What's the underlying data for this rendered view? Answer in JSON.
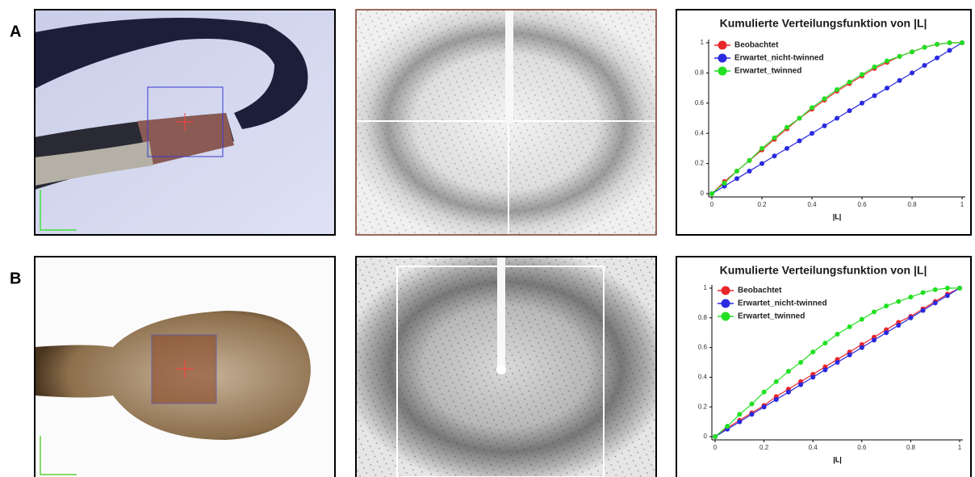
{
  "panels": [
    {
      "label": "A"
    },
    {
      "label": "B"
    }
  ],
  "chart_data": [
    {
      "type": "line",
      "title": "Kumulierte Verteilungsfunktion von |L|",
      "x_label": "|L|",
      "x": [
        0,
        0.05,
        0.1,
        0.15,
        0.2,
        0.25,
        0.3,
        0.35,
        0.4,
        0.45,
        0.5,
        0.55,
        0.6,
        0.65,
        0.7,
        0.75,
        0.8,
        0.85,
        0.9,
        0.95,
        1
      ],
      "xlim": [
        0,
        1
      ],
      "xticks": [
        0,
        0.2,
        0.4,
        0.6,
        0.8,
        1
      ],
      "ylim": [
        0,
        1
      ],
      "yticks": [
        0,
        0.2,
        0.4,
        0.6,
        0.8,
        1
      ],
      "legend": "upper left",
      "series": [
        {
          "name": "Beobachtet",
          "color": "#e8262a",
          "values": [
            0,
            0.08,
            0.15,
            0.22,
            0.29,
            0.36,
            0.43,
            0.5,
            0.56,
            0.62,
            0.68,
            0.73,
            0.78,
            0.83,
            0.87,
            0.91,
            0.94,
            0.97,
            0.99,
            1.0,
            1.0
          ]
        },
        {
          "name": "Erwartet_nicht-twinned",
          "color": "#2a2ae0",
          "values": [
            0,
            0.05,
            0.1,
            0.15,
            0.2,
            0.25,
            0.3,
            0.35,
            0.4,
            0.45,
            0.5,
            0.55,
            0.6,
            0.65,
            0.7,
            0.75,
            0.8,
            0.85,
            0.9,
            0.95,
            1
          ]
        },
        {
          "name": "Erwartet_twinned",
          "color": "#22e022",
          "values": [
            0,
            0.07,
            0.15,
            0.22,
            0.3,
            0.37,
            0.44,
            0.5,
            0.57,
            0.63,
            0.69,
            0.74,
            0.79,
            0.84,
            0.88,
            0.91,
            0.94,
            0.97,
            0.99,
            1.0,
            1.0
          ]
        }
      ]
    },
    {
      "type": "line",
      "title": "Kumulierte Verteilungsfunktion von |L|",
      "x_label": "|L|",
      "x": [
        0,
        0.05,
        0.1,
        0.15,
        0.2,
        0.25,
        0.3,
        0.35,
        0.4,
        0.45,
        0.5,
        0.55,
        0.6,
        0.65,
        0.7,
        0.75,
        0.8,
        0.85,
        0.9,
        0.95,
        1
      ],
      "xlim": [
        0,
        1
      ],
      "xticks": [
        0,
        0.2,
        0.4,
        0.6,
        0.8,
        1
      ],
      "ylim": [
        0,
        1
      ],
      "yticks": [
        0,
        0.2,
        0.4,
        0.6,
        0.8,
        1
      ],
      "legend": "upper left",
      "series": [
        {
          "name": "Beobachtet",
          "color": "#e8262a",
          "values": [
            0,
            0.06,
            0.11,
            0.16,
            0.21,
            0.27,
            0.32,
            0.37,
            0.42,
            0.47,
            0.52,
            0.57,
            0.62,
            0.67,
            0.72,
            0.77,
            0.81,
            0.86,
            0.91,
            0.96,
            1.0
          ]
        },
        {
          "name": "Erwartet_nicht-twinned",
          "color": "#2a2ae0",
          "values": [
            0,
            0.05,
            0.1,
            0.15,
            0.2,
            0.25,
            0.3,
            0.35,
            0.4,
            0.45,
            0.5,
            0.55,
            0.6,
            0.65,
            0.7,
            0.75,
            0.8,
            0.85,
            0.9,
            0.95,
            1
          ]
        },
        {
          "name": "Erwartet_twinned",
          "color": "#22e022",
          "values": [
            0,
            0.07,
            0.15,
            0.22,
            0.3,
            0.37,
            0.44,
            0.5,
            0.57,
            0.63,
            0.69,
            0.74,
            0.79,
            0.84,
            0.88,
            0.91,
            0.94,
            0.97,
            0.99,
            1.0,
            1.0
          ]
        }
      ]
    }
  ]
}
